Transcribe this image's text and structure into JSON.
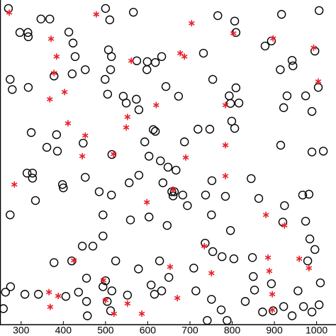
{
  "chart_data": {
    "type": "scatter",
    "xlim": [
      250,
      1046
    ],
    "ylim": [
      0,
      769
    ],
    "xticks": [
      300,
      400,
      500,
      600,
      700,
      800,
      900,
      1000
    ],
    "series": [
      {
        "color": "#000000",
        "marker": "circle",
        "x": [
          270,
          297,
          316,
          317,
          347,
          368,
          413,
          423,
          500,
          510,
          566,
          507,
          514,
          512,
          574,
          599,
          618,
          598,
          633,
          732,
          766,
          806,
          809,
          893,
          878,
          917,
          942,
          944,
          1006,
          996,
          274,
          279,
          317,
          428,
          378,
          452,
          421,
          499,
          542,
          549,
          505,
          573,
          579,
          618,
          613,
          643,
          673,
          754,
          793,
          796,
          809,
          816,
          914,
          930,
          974,
          922,
          989,
          1004,
          324,
          361,
          384,
          386,
          447,
          515,
          593,
          603,
          630,
          648,
          667,
          687,
          719,
          747,
          799,
          806,
          915,
          989,
          1016,
          314,
          327,
          327,
          334,
          274,
          398,
          400,
          452,
          485,
          514,
          556,
          579,
          636,
          657,
          663,
          660,
          683,
          694,
          752,
          737,
          845,
          863,
          784,
          924,
          967,
          982,
          559,
          494,
          603,
          646,
          751,
          796,
          736,
          494,
          920,
          974,
          984,
          445,
          470,
          420,
          378,
          436,
          455,
          500,
          524,
          578,
          628,
          709,
          754,
          776,
          804,
          848,
          850,
          996,
          979,
          1009,
          893,
          853,
          494,
          515,
          275,
          263,
          309,
          341,
          406,
          455,
          504,
          552,
          608,
          650,
          633,
          714,
          751,
          774,
          831,
          872,
          922,
          956,
          969,
          989,
          942,
          1006,
          258,
          457,
          788,
          741,
          897,
          616,
          512
        ],
        "values": [
          749,
          692,
          692,
          682,
          724,
          724,
          693,
          667,
          749,
          722,
          740,
          651,
          635,
          604,
          625,
          623,
          621,
          604,
          635,
          643,
          732,
          719,
          692,
          672,
          660,
          735,
          626,
          613,
          744,
          648,
          581,
          557,
          562,
          635,
          589,
          604,
          594,
          581,
          541,
          525,
          546,
          534,
          509,
          458,
          462,
          564,
          541,
          581,
          542,
          524,
          561,
          525,
          604,
          542,
          542,
          514,
          505,
          562,
          455,
          420,
          450,
          411,
          430,
          403,
          433,
          399,
          388,
          373,
          366,
          433,
          463,
          463,
          482,
          465,
          425,
          409,
          411,
          359,
          359,
          347,
          294,
          260,
          332,
          324,
          349,
          315,
          307,
          336,
          354,
          336,
          315,
          315,
          305,
          307,
          282,
          341,
          307,
          346,
          299,
          304,
          282,
          307,
          309,
          248,
          260,
          255,
          235,
          260,
          223,
          193,
          210,
          243,
          245,
          203,
          186,
          186,
          151,
          147,
          77,
          110,
          104,
          151,
          132,
          151,
          134,
          173,
          161,
          156,
          159,
          114,
          178,
          151,
          99,
          97,
          82,
          90,
          80,
          90,
          77,
          72,
          72,
          67,
          55,
          55,
          70,
          94,
          112,
          80,
          80,
          60,
          35,
          55,
          30,
          43,
          80,
          43,
          30,
          21,
          47,
          38,
          21,
          10,
          10,
          33,
          72,
          33
        ]
      },
      {
        "color": "#e8202a",
        "marker": "star",
        "x": [
          272,
          478,
          371,
          704,
          803,
          897,
          561,
          677,
          687,
          993,
          384,
          378,
          403,
          368,
          411,
          1004,
          552,
          549,
          620,
          784,
          452,
          784,
          445,
          690,
          519,
          784,
          284,
          660,
          880,
          598,
          924,
          734,
          959,
          982,
          888,
          885,
          425,
          495,
          653,
          751,
          366,
          388,
          369,
          500,
          520,
          552,
          670,
          586,
          895,
          895
        ],
        "values": [
          739,
          735,
          677,
          714,
          690,
          678,
          625,
          643,
          635,
          656,
          635,
          596,
          551,
          534,
          477,
          576,
          492,
          467,
          520,
          520,
          448,
          425,
          399,
          396,
          404,
          352,
          332,
          320,
          260,
          290,
          235,
          186,
          156,
          134,
          127,
          159,
          152,
          105,
          137,
          122,
          77,
          68,
          42,
          58,
          26,
          50,
          63,
          26,
          72,
          35
        ]
      }
    ]
  }
}
